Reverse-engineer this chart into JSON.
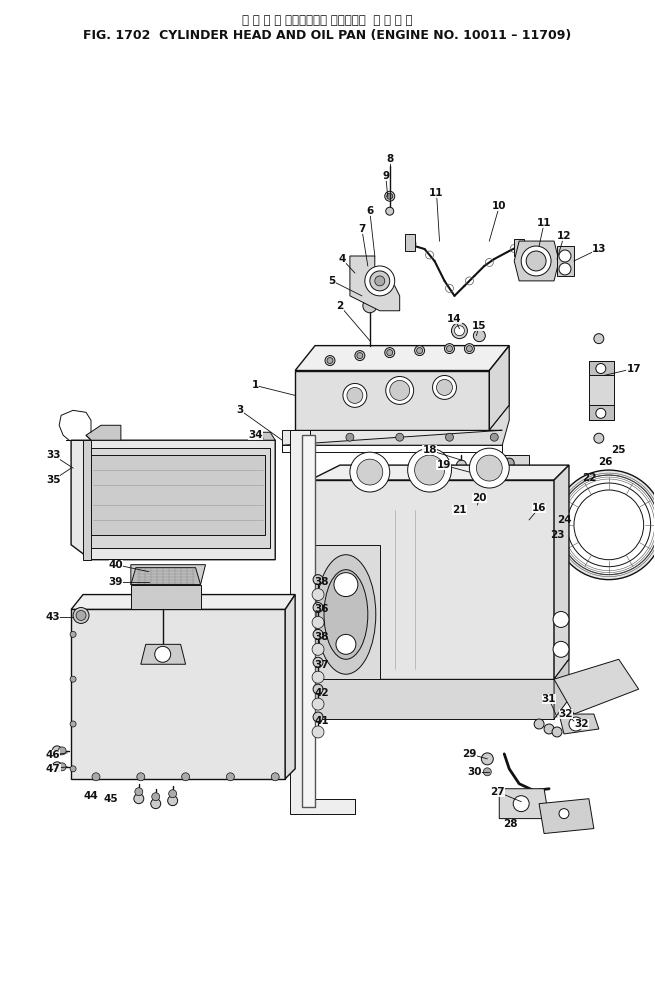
{
  "title_japanese": "シ リ ン ダ ヘッドおよび オイルパン  適 用 号 機",
  "title_english": "FIG. 1702  CYLINDER HEAD AND OIL PAN (ENGINE NO. 10011 – 11709)",
  "bg_color": "#ffffff",
  "title_color": "#000000",
  "fig_width": 6.55,
  "fig_height": 9.81,
  "dpi": 100
}
